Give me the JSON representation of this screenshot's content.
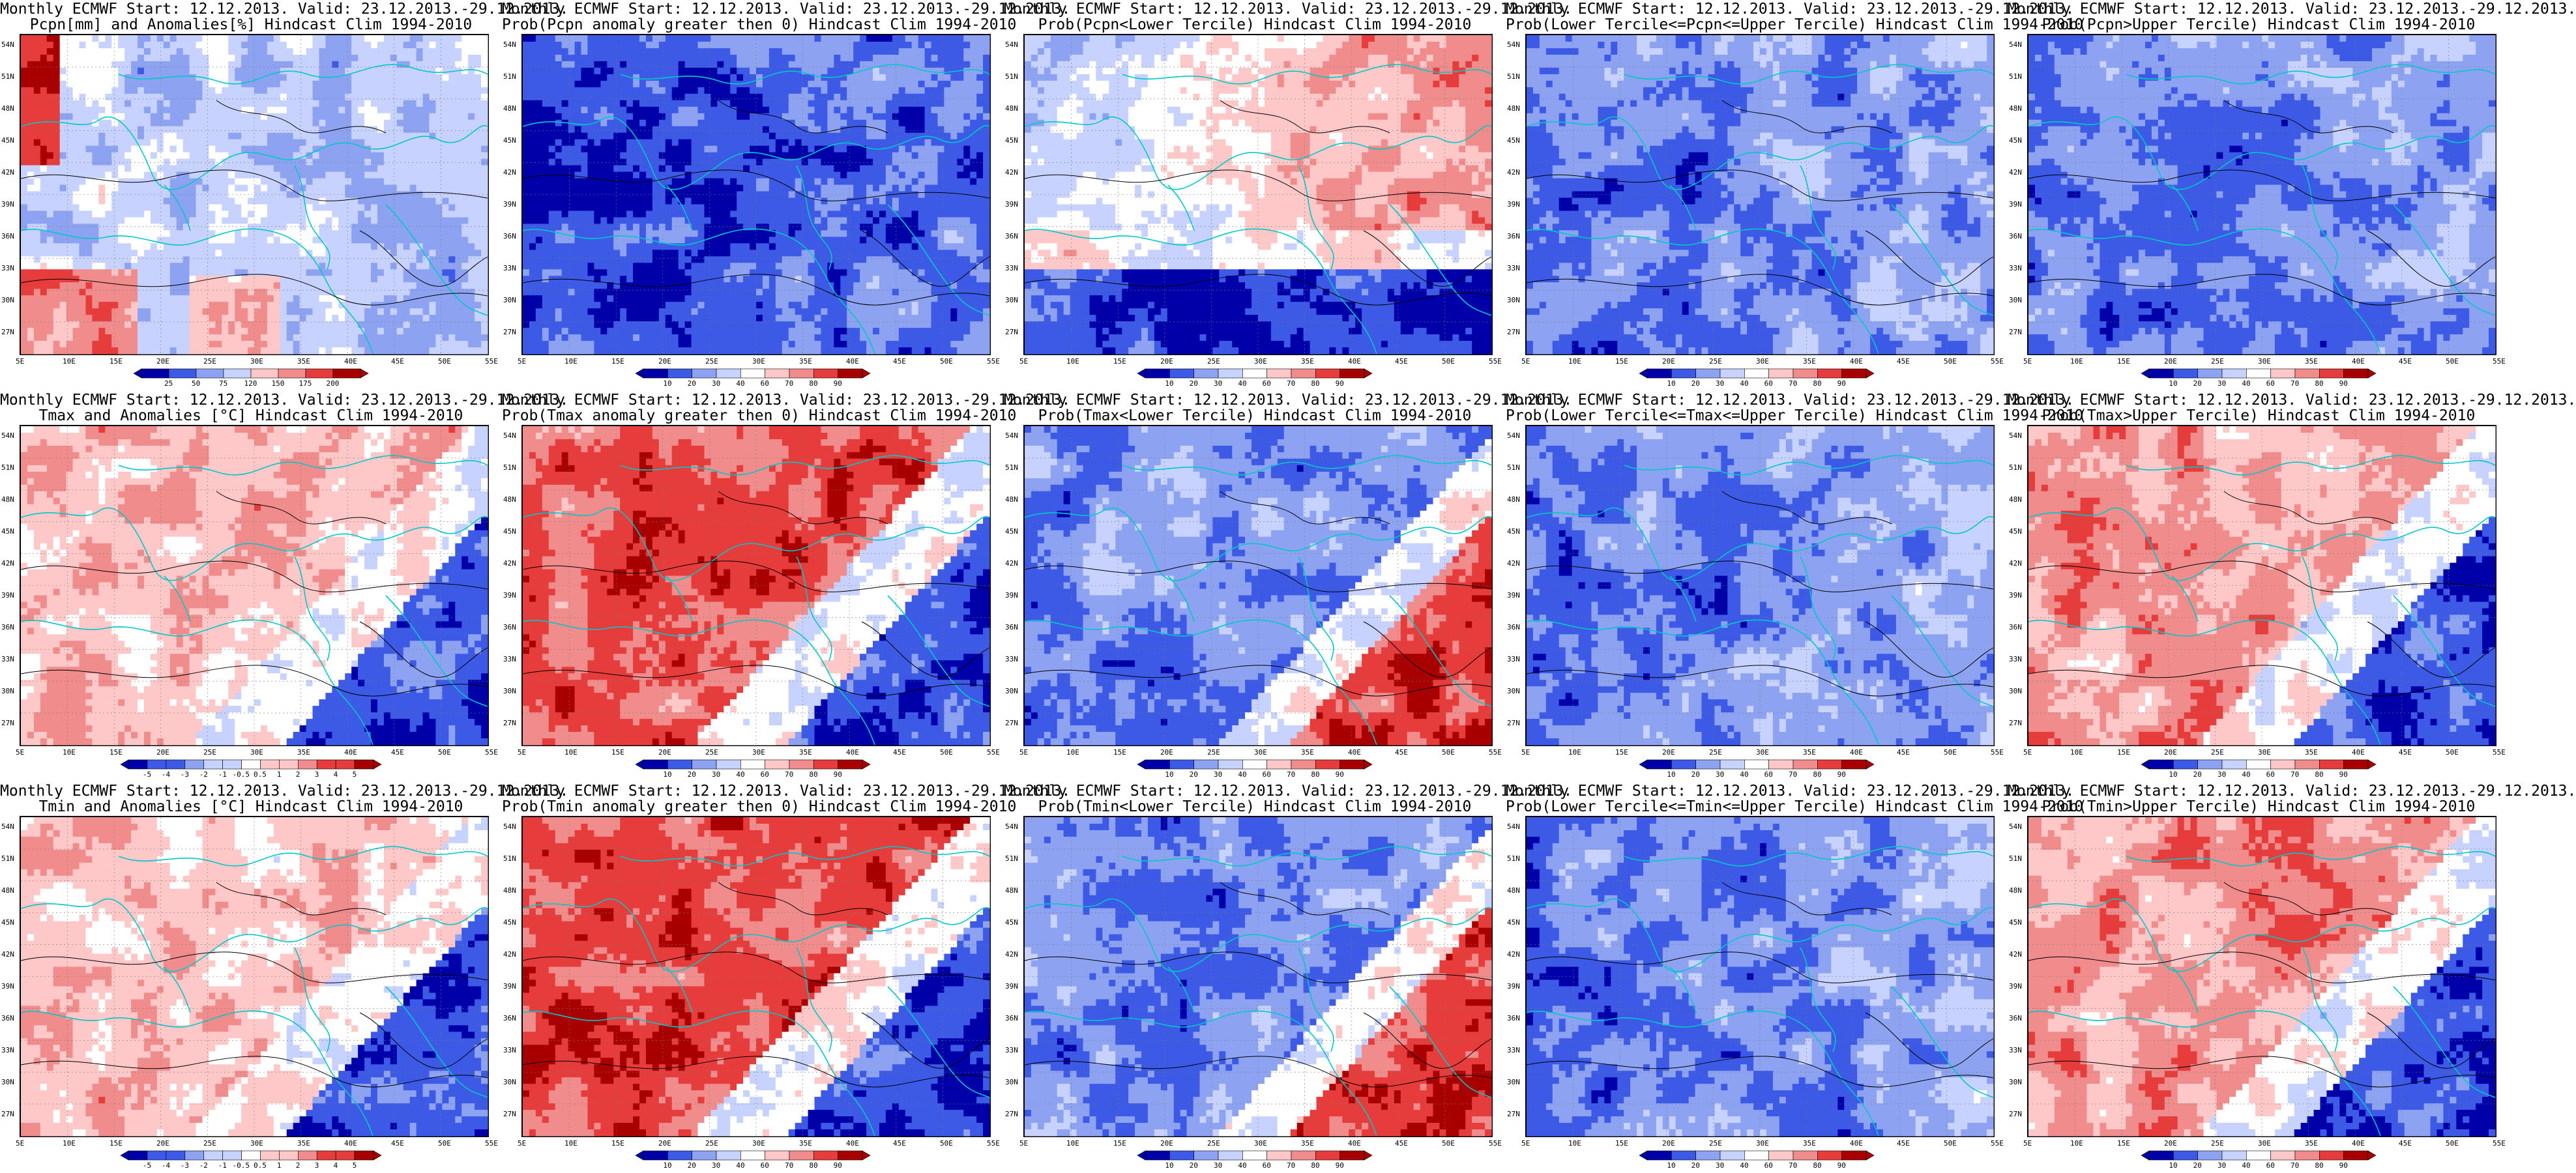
{
  "colors": {
    "blue_dark": "#0000a8",
    "blue_mid": "#3c5ae6",
    "blue_light": "#8ea2f2",
    "blue_pale": "#c8d2ff",
    "white": "#ffffff",
    "red_pale": "#ffc8c8",
    "red_light": "#f08c8c",
    "red_mid": "#e63c3c",
    "red_dark": "#a80000",
    "coast": "#00c8c8",
    "contour": "#000000"
  },
  "lat_labels": [
    "54N",
    "51N",
    "48N",
    "45N",
    "42N",
    "39N",
    "36N",
    "33N",
    "30N",
    "27N"
  ],
  "lon_labels": [
    "5E",
    "10E",
    "15E",
    "20E",
    "25E",
    "30E",
    "35E",
    "40E",
    "45E",
    "50E",
    "55E"
  ],
  "scales": {
    "pcpn_anom": [
      "25",
      "50",
      "75",
      "120",
      "150",
      "175",
      "200"
    ],
    "prob": [
      "10",
      "20",
      "30",
      "40",
      "60",
      "70",
      "80",
      "90"
    ],
    "temp_anom": [
      "-5",
      "-4",
      "-3",
      "-2",
      "-1",
      "-0.5",
      "0.5",
      "1",
      "2",
      "3",
      "4",
      "5"
    ]
  },
  "panels": [
    {
      "title1": "Monthly ECMWF Start: 12.12.2013. Valid: 23.12.2013.-29.12.2013.",
      "title2": "Pcpn[mm] and Anomalies[%] Hindcast Clim 1994-2010",
      "scale": "pcpn_anom",
      "pattern": "mixed_blue",
      "level": 0.4
    },
    {
      "title1": "Monthly ECMWF Start: 12.12.2013. Valid: 23.12.2013.-29.12.2013.",
      "title2": "Prob(Pcpn anomaly greater then 0) Hindcast Clim 1994-2010",
      "scale": "prob",
      "pattern": "blue",
      "level": 0.22
    },
    {
      "title1": "Monthly ECMWF Start: 12.12.2013. Valid: 23.12.2013.-29.12.2013.",
      "title2": "Prob(Pcpn<Lower Tercile) Hindcast Clim 1994-2010",
      "scale": "prob",
      "pattern": "north_red_south_blue",
      "level": 0.55
    },
    {
      "title1": "Monthly ECMWF Start: 12.12.2013. Valid: 23.12.2013.-29.12.2013.",
      "title2": "Prob(Lower Tercile<=Pcpn<=Upper Tercile) Hindcast Clim 1994-2010",
      "scale": "prob",
      "pattern": "blue",
      "level": 0.3
    },
    {
      "title1": "Monthly ECMWF Start: 12.12.2013. Valid: 23.12.2013.-29.12.2013.",
      "title2": "Prob(Pcpn>Upper Tercile) Hindcast Clim 1994-2010",
      "scale": "prob",
      "pattern": "blue",
      "level": 0.3
    },
    {
      "title1": "Monthly ECMWF Start: 12.12.2013. Valid: 23.12.2013.-29.12.2013.",
      "title2": "Tmax and Anomalies [°C] Hindcast Clim 1994-2010",
      "scale": "temp_anom",
      "pattern": "red_west_blue_east",
      "level": 0.62
    },
    {
      "title1": "Monthly ECMWF Start: 12.12.2013. Valid: 23.12.2013.-29.12.2013.",
      "title2": "Prob(Tmax anomaly greater then 0) Hindcast Clim 1994-2010",
      "scale": "prob",
      "pattern": "red_west_blue_east",
      "level": 0.8
    },
    {
      "title1": "Monthly ECMWF Start: 12.12.2013. Valid: 23.12.2013.-29.12.2013.",
      "title2": "Prob(Tmax<Lower Tercile) Hindcast Clim 1994-2010",
      "scale": "prob",
      "pattern": "blue_west_red_east",
      "level": 0.25
    },
    {
      "title1": "Monthly ECMWF Start: 12.12.2013. Valid: 23.12.2013.-29.12.2013.",
      "title2": "Prob(Lower Tercile<=Tmax<=Upper Tercile) Hindcast Clim 1994-2010",
      "scale": "prob",
      "pattern": "blue",
      "level": 0.3
    },
    {
      "title1": "Monthly ECMWF Start: 12.12.2013. Valid: 23.12.2013.-29.12.2013.",
      "title2": "Prob(Tmax>Upper Tercile) Hindcast Clim 1994-2010",
      "scale": "prob",
      "pattern": "red_west_blue_east",
      "level": 0.7
    },
    {
      "title1": "Monthly ECMWF Start: 12.12.2013. Valid: 23.12.2013.-29.12.2013.",
      "title2": "Tmin and Anomalies [°C] Hindcast Clim 1994-2010",
      "scale": "temp_anom",
      "pattern": "red_west_blue_east",
      "level": 0.62
    },
    {
      "title1": "Monthly ECMWF Start: 12.12.2013. Valid: 23.12.2013.-29.12.2013.",
      "title2": "Prob(Tmin anomaly greater then 0) Hindcast Clim 1994-2010",
      "scale": "prob",
      "pattern": "red_west_blue_east",
      "level": 0.82
    },
    {
      "title1": "Monthly ECMWF Start: 12.12.2013. Valid: 23.12.2013.-29.12.2013.",
      "title2": "Prob(Tmin<Lower Tercile) Hindcast Clim 1994-2010",
      "scale": "prob",
      "pattern": "blue_west_red_east",
      "level": 0.25
    },
    {
      "title1": "Monthly ECMWF Start: 12.12.2013. Valid: 23.12.2013.-29.12.2013.",
      "title2": "Prob(Lower Tercile<=Tmin<=Upper Tercile) Hindcast Clim 1994-2010",
      "scale": "prob",
      "pattern": "blue",
      "level": 0.3
    },
    {
      "title1": "Monthly ECMWF Start: 12.12.2013. Valid: 23.12.2013.-29.12.2013.",
      "title2": "Prob(Tmin>Upper Tercile) Hindcast Clim 1994-2010",
      "scale": "prob",
      "pattern": "red_west_blue_east",
      "level": 0.7
    }
  ]
}
